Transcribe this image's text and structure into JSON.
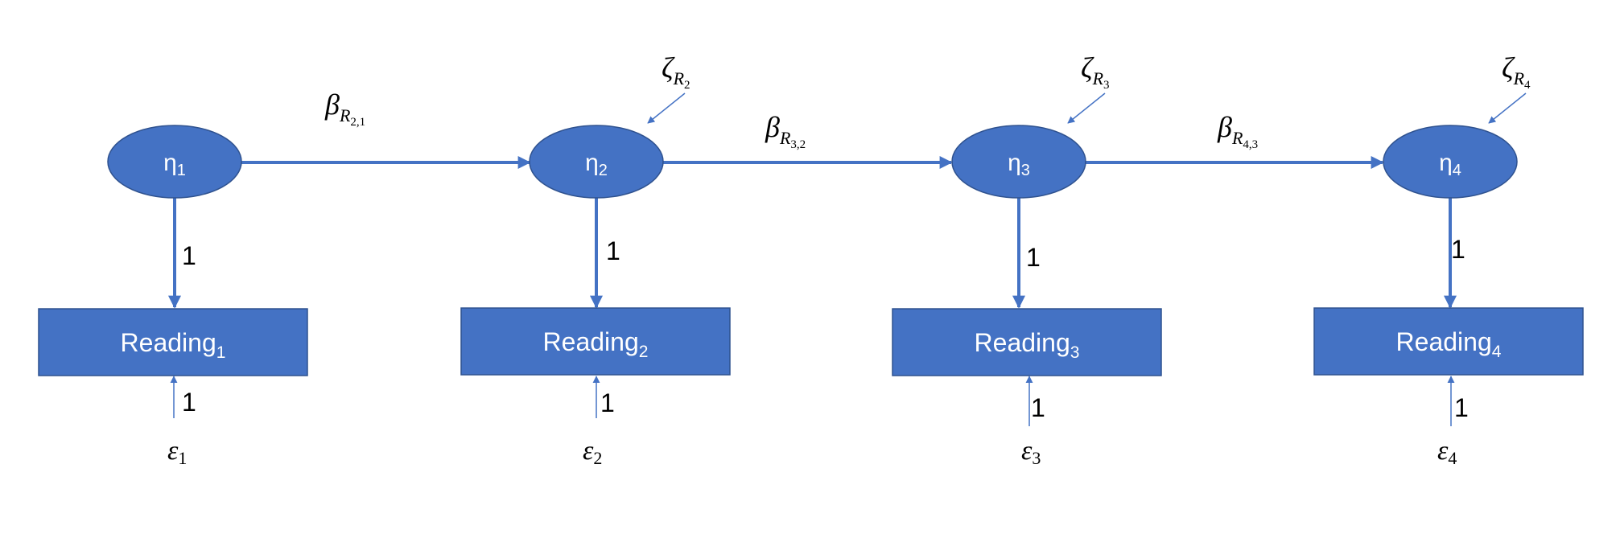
{
  "colors": {
    "node_fill": "#4472c4",
    "node_stroke": "#2f528f",
    "arrow": "#4472c4",
    "node_text": "#ffffff",
    "label_text": "#000000"
  },
  "latents": [
    {
      "symbol": "η",
      "sub": "1"
    },
    {
      "symbol": "η",
      "sub": "2"
    },
    {
      "symbol": "η",
      "sub": "3"
    },
    {
      "symbol": "η",
      "sub": "4"
    }
  ],
  "indicators": [
    {
      "label": "Reading",
      "sub": "1"
    },
    {
      "label": "Reading",
      "sub": "2"
    },
    {
      "label": "Reading",
      "sub": "3"
    },
    {
      "label": "Reading",
      "sub": "4"
    }
  ],
  "loadings": [
    "1",
    "1",
    "1",
    "1"
  ],
  "error_weights": [
    "1",
    "1",
    "1",
    "1"
  ],
  "errors": [
    {
      "symbol": "ε",
      "sub": "1"
    },
    {
      "symbol": "ε",
      "sub": "2"
    },
    {
      "symbol": "ε",
      "sub": "3"
    },
    {
      "symbol": "ε",
      "sub": "4"
    }
  ],
  "disturbances": [
    {
      "symbol": "ζ",
      "sub": "R",
      "subsub": "2"
    },
    {
      "symbol": "ζ",
      "sub": "R",
      "subsub": "3"
    },
    {
      "symbol": "ζ",
      "sub": "R",
      "subsub": "4"
    }
  ],
  "paths": [
    {
      "symbol": "β",
      "sub": "R",
      "subsub": "2,1"
    },
    {
      "symbol": "β",
      "sub": "R",
      "subsub": "3,2"
    },
    {
      "symbol": "β",
      "sub": "R",
      "subsub": "4,3"
    }
  ]
}
